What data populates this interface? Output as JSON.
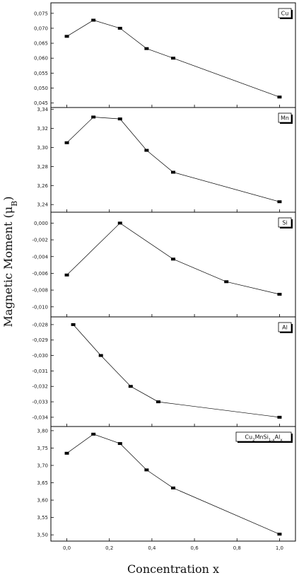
{
  "figure": {
    "ylabel": "Magnetic Moment (μ",
    "ylabel_sub": "B",
    "ylabel_close": ")",
    "xlabel": "Concentration x"
  },
  "chart_data": [
    {
      "type": "line",
      "legend_main": "Cu",
      "legend_sub": "",
      "legend_tail": "",
      "x": [
        0.0,
        0.125,
        0.25,
        0.375,
        0.5,
        1.0
      ],
      "y": [
        0.0673,
        0.0727,
        0.07,
        0.0632,
        0.06,
        0.047
      ],
      "ylim": [
        0.0435,
        0.0785
      ],
      "yticks": [
        0.045,
        0.05,
        0.055,
        0.06,
        0.065,
        0.07,
        0.075
      ],
      "ytick_labels": [
        "0,045",
        "0,050",
        "0,055",
        "0,060",
        "0,065",
        "0,070",
        "0,075"
      ]
    },
    {
      "type": "line",
      "legend_main": "Mn",
      "legend_sub": "",
      "legend_tail": "",
      "x": [
        0.0,
        0.125,
        0.25,
        0.375,
        0.5,
        1.0
      ],
      "y": [
        3.305,
        3.332,
        3.33,
        3.297,
        3.274,
        3.243
      ],
      "ylim": [
        3.232,
        3.342
      ],
      "yticks": [
        3.24,
        3.26,
        3.28,
        3.3,
        3.32,
        3.34
      ],
      "ytick_labels": [
        "3,24",
        "3,26",
        "3,28",
        "3,30",
        "3,32",
        "3,34"
      ]
    },
    {
      "type": "line",
      "legend_main": "Si",
      "legend_sub": "",
      "legend_tail": "",
      "x": [
        0.0,
        0.25,
        0.5,
        0.75,
        1.0
      ],
      "y": [
        -0.0062,
        0.0,
        -0.0043,
        -0.007,
        -0.0085
      ],
      "ylim": [
        -0.0112,
        0.0013
      ],
      "yticks": [
        -0.01,
        -0.008,
        -0.006,
        -0.004,
        -0.002,
        0.0
      ],
      "ytick_labels": [
        "-0,010",
        "-0,008",
        "-0,006",
        "-0,004",
        "-0,002",
        "0,000"
      ]
    },
    {
      "type": "line",
      "legend_main": "Al",
      "legend_sub": "",
      "legend_tail": "",
      "x": [
        0.03,
        0.16,
        0.3,
        0.43,
        1.0
      ],
      "y": [
        -0.028,
        -0.03,
        -0.032,
        -0.033,
        -0.034
      ],
      "ylim": [
        -0.0346,
        -0.0275
      ],
      "yticks": [
        -0.034,
        -0.033,
        -0.032,
        -0.031,
        -0.03,
        -0.029,
        -0.028
      ],
      "ytick_labels": [
        "-0,034",
        "-0,033",
        "-0,032",
        "-0,031",
        "-0,030",
        "-0,029",
        "-0,028"
      ]
    },
    {
      "type": "line",
      "legend_main": "Cu",
      "legend_sub": "2",
      "legend_tail": "MnSi",
      "legend_sub2": "1-x",
      "legend_tail2": "Al",
      "legend_sub3": "x",
      "x": [
        0.0,
        0.125,
        0.25,
        0.375,
        0.5,
        1.0
      ],
      "y": [
        3.735,
        3.79,
        3.763,
        3.687,
        3.635,
        3.502
      ],
      "ylim": [
        3.482,
        3.812
      ],
      "yticks": [
        3.5,
        3.55,
        3.6,
        3.65,
        3.7,
        3.75,
        3.8
      ],
      "ytick_labels": [
        "3,50",
        "3,55",
        "3,60",
        "3,65",
        "3,70",
        "3,75",
        "3,80"
      ],
      "xticks": [
        0.0,
        0.2,
        0.4,
        0.6,
        0.8,
        1.0
      ],
      "xtick_labels": [
        "0,0",
        "0,2",
        "0,4",
        "0,6",
        "0,8",
        "1,0"
      ]
    }
  ]
}
